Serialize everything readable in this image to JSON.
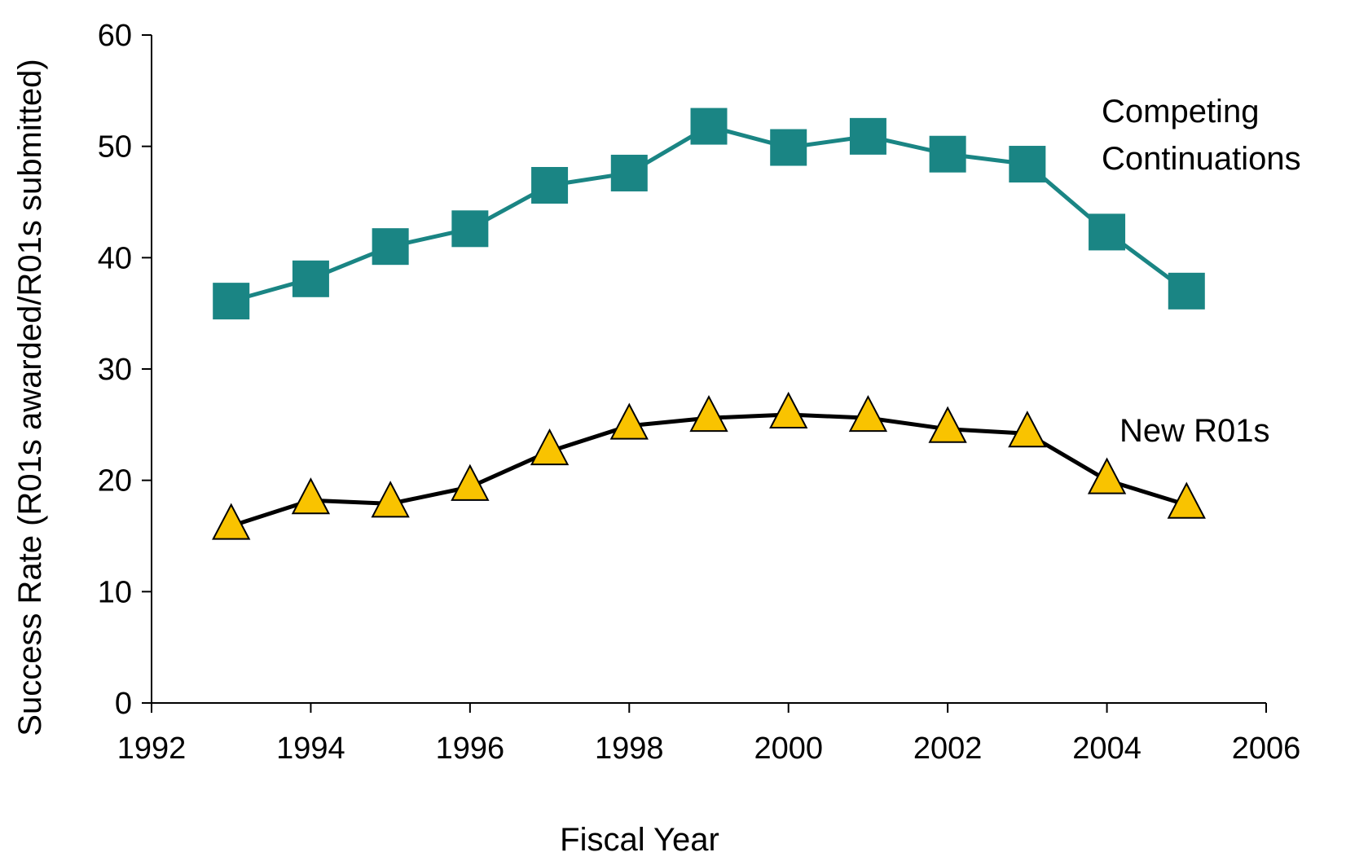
{
  "chart_data": {
    "type": "line",
    "xlabel": "Fiscal Year",
    "ylabel": "Success Rate (R01s awarded/R01s submitted)",
    "xlim": [
      1992,
      2006
    ],
    "ylim": [
      0,
      60
    ],
    "x_ticks": [
      1992,
      1994,
      1996,
      1998,
      2000,
      2002,
      2004,
      2006
    ],
    "y_ticks": [
      0,
      10,
      20,
      30,
      40,
      50,
      60
    ],
    "grid": false,
    "legend": "none (series labelled directly on the plot)",
    "x": [
      1993,
      1994,
      1995,
      1996,
      1997,
      1998,
      1999,
      2000,
      2001,
      2002,
      2003,
      2004,
      2005
    ],
    "series": [
      {
        "name": "Competing Continuations",
        "label_lines": [
          "Competing",
          "Continuations"
        ],
        "color": "#1a8584",
        "marker": "square",
        "values": [
          36.1,
          38.1,
          41.0,
          42.6,
          46.5,
          47.6,
          51.8,
          49.9,
          50.9,
          49.3,
          48.4,
          42.3,
          37.0
        ]
      },
      {
        "name": "New R01s",
        "label_lines": [
          "New R01s"
        ],
        "color": "#000000",
        "marker": "triangle",
        "marker_fill": "#f9c300",
        "values": [
          15.9,
          18.2,
          17.9,
          19.4,
          22.6,
          24.9,
          25.6,
          25.9,
          25.6,
          24.6,
          24.2,
          20.0,
          17.8
        ]
      }
    ]
  }
}
